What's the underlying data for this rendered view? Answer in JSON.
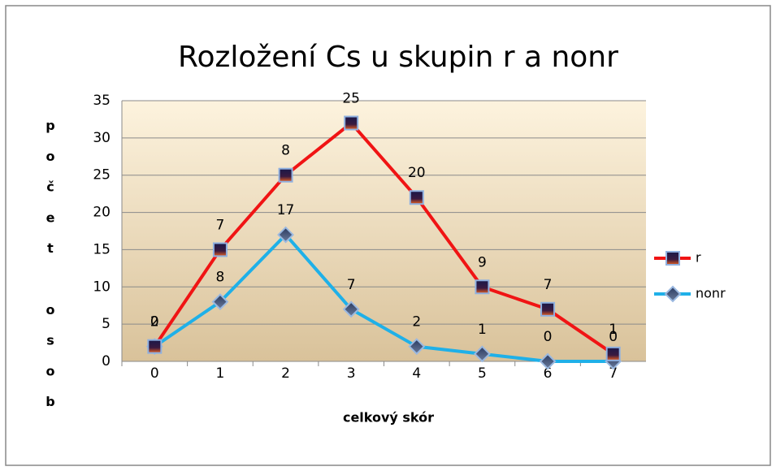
{
  "chart_data": {
    "type": "line",
    "stacked": true,
    "title": "Rozložení Cs u skupin r a nonr",
    "xlabel": "celkový skór",
    "ylabel": "počet osob",
    "categories": [
      "0",
      "1",
      "2",
      "3",
      "4",
      "5",
      "6",
      "7"
    ],
    "series": [
      {
        "name": "nonr",
        "color": "#1fb0e8",
        "values": [
          2,
          8,
          17,
          7,
          2,
          1,
          0,
          0
        ]
      },
      {
        "name": "r",
        "color": "#f01414",
        "values": [
          0,
          7,
          8,
          25,
          20,
          9,
          7,
          1
        ]
      }
    ],
    "ylim": [
      0,
      35
    ],
    "yticks": [
      0,
      5,
      10,
      15,
      20,
      25,
      30,
      35
    ],
    "grid": true,
    "legend": "right"
  }
}
